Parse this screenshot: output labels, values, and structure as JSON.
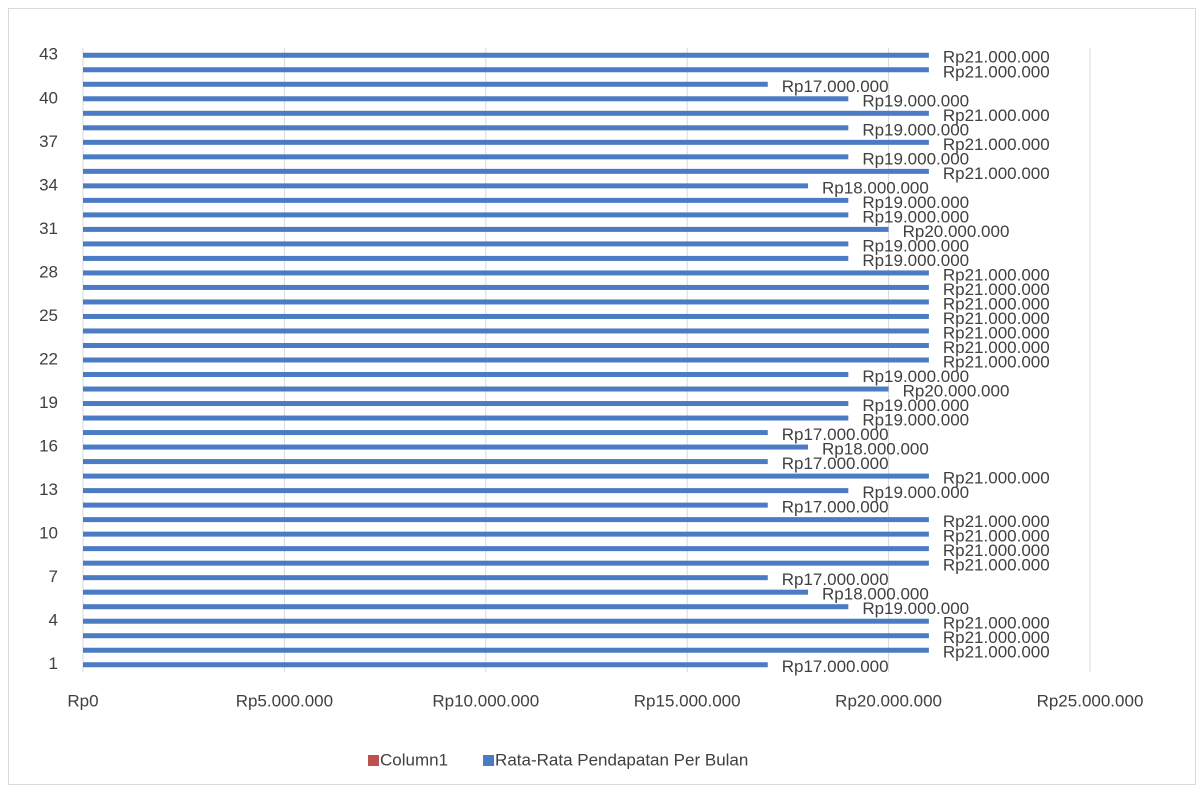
{
  "chart_data": {
    "type": "hbar",
    "categories": [
      1,
      null,
      null,
      4,
      null,
      null,
      7,
      null,
      null,
      10,
      null,
      null,
      13,
      null,
      null,
      16,
      null,
      null,
      19,
      null,
      null,
      22,
      null,
      null,
      25,
      null,
      null,
      28,
      null,
      null,
      31,
      null,
      null,
      34,
      null,
      null,
      37,
      null,
      null,
      40,
      null,
      null,
      43
    ],
    "series": [
      {
        "name": "Column1",
        "color": "#c0504d",
        "values": [
          null,
          null,
          null,
          null,
          null,
          null,
          null,
          null,
          null,
          null,
          null,
          null,
          null,
          null,
          null,
          null,
          null,
          null,
          null,
          null,
          null,
          null,
          null,
          null,
          null,
          null,
          null,
          null,
          null,
          null,
          null,
          null,
          null,
          null,
          null,
          null,
          null,
          null,
          null,
          null,
          null,
          null,
          null
        ]
      },
      {
        "name": "Rata-Rata Pendapatan Per Bulan",
        "color": "#4a7bc4",
        "values": [
          17000000,
          21000000,
          21000000,
          21000000,
          19000000,
          18000000,
          17000000,
          21000000,
          21000000,
          21000000,
          21000000,
          17000000,
          19000000,
          21000000,
          17000000,
          18000000,
          17000000,
          19000000,
          19000000,
          20000000,
          19000000,
          21000000,
          21000000,
          21000000,
          21000000,
          21000000,
          21000000,
          21000000,
          19000000,
          19000000,
          20000000,
          19000000,
          19000000,
          18000000,
          21000000,
          19000000,
          21000000,
          19000000,
          21000000,
          19000000,
          17000000,
          21000000,
          21000000
        ],
        "value_labels": [
          "Rp17.000.000",
          "Rp21.000.000",
          "Rp21.000.000",
          "Rp21.000.000",
          "Rp19.000.000",
          "Rp18.000.000",
          "Rp17.000.000",
          "Rp21.000.000",
          "Rp21.000.000",
          "Rp21.000.000",
          "Rp21.000.000",
          "Rp17.000.000",
          "Rp19.000.000",
          "Rp21.000.000",
          "Rp17.000.000",
          "Rp18.000.000",
          "Rp17.000.000",
          "Rp19.000.000",
          "Rp19.000.000",
          "Rp20.000.000",
          "Rp19.000.000",
          "Rp21.000.000",
          "Rp21.000.000",
          "Rp21.000.000",
          "Rp21.000.000",
          "Rp21.000.000",
          "Rp21.000.000",
          "Rp21.000.000",
          "Rp19.000.000",
          "Rp19.000.000",
          "Rp20.000.000",
          "Rp19.000.000",
          "Rp19.000.000",
          "Rp18.000.000",
          "Rp21.000.000",
          "Rp19.000.000",
          "Rp21.000.000",
          "Rp19.000.000",
          "Rp21.000.000",
          "Rp19.000.000",
          "Rp17.000.000",
          "Rp21.000.000",
          "Rp21.000.000"
        ]
      }
    ],
    "xlim": [
      0,
      25000000
    ],
    "xticks": [
      {
        "value": 0,
        "label": "Rp0"
      },
      {
        "value": 5000000,
        "label": "Rp5.000.000"
      },
      {
        "value": 10000000,
        "label": "Rp10.000.000"
      },
      {
        "value": 15000000,
        "label": "Rp15.000.000"
      },
      {
        "value": 20000000,
        "label": "Rp20.000.000"
      },
      {
        "value": 25000000,
        "label": "Rp25.000.000"
      }
    ],
    "grid": true,
    "legend": "bottom"
  }
}
